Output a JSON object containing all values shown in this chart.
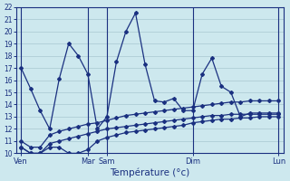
{
  "background_color": "#cde8ee",
  "grid_color": "#a8c8d0",
  "line_color": "#1a3080",
  "title": "Température (°c)",
  "yticks": [
    10,
    11,
    12,
    13,
    14,
    15,
    16,
    17,
    18,
    19,
    20,
    21,
    22
  ],
  "ymin": 10,
  "ymax": 22,
  "num_points": 28,
  "hi_y": [
    17.0,
    15.3,
    13.5,
    12.0,
    16.1,
    19.0,
    18.0,
    16.5,
    12.0,
    13.0,
    17.5,
    20.0,
    21.5,
    17.3,
    14.3,
    14.2,
    14.5,
    13.5,
    13.5,
    16.5,
    17.8,
    15.5,
    15.0,
    13.0,
    13.3,
    13.3,
    13.3,
    13.3
  ],
  "mid1_y": [
    11.0,
    10.5,
    10.5,
    11.5,
    11.8,
    12.0,
    12.2,
    12.4,
    12.5,
    12.7,
    12.9,
    13.1,
    13.2,
    13.3,
    13.4,
    13.5,
    13.6,
    13.7,
    13.8,
    13.9,
    14.0,
    14.1,
    14.2,
    14.2,
    14.3,
    14.3,
    14.3,
    14.3
  ],
  "mid2_y": [
    10.5,
    10.0,
    10.0,
    10.8,
    11.0,
    11.2,
    11.4,
    11.6,
    11.8,
    12.0,
    12.1,
    12.2,
    12.3,
    12.4,
    12.5,
    12.6,
    12.7,
    12.8,
    12.9,
    13.0,
    13.1,
    13.1,
    13.2,
    13.2,
    13.2,
    13.2,
    13.2,
    13.2
  ],
  "lo_y": [
    10.5,
    10.0,
    10.0,
    10.5,
    10.5,
    10.0,
    10.0,
    10.3,
    11.0,
    11.3,
    11.5,
    11.7,
    11.8,
    11.9,
    12.0,
    12.1,
    12.2,
    12.3,
    12.5,
    12.6,
    12.7,
    12.8,
    12.8,
    12.9,
    12.9,
    13.0,
    13.0,
    13.0
  ],
  "xtick_positions": [
    0,
    7,
    9,
    18,
    27
  ],
  "xtick_labels": [
    "Ven",
    "Mar",
    "Sam",
    "Dim",
    "Lun"
  ],
  "vlines": [
    0,
    7,
    9,
    18,
    27
  ]
}
